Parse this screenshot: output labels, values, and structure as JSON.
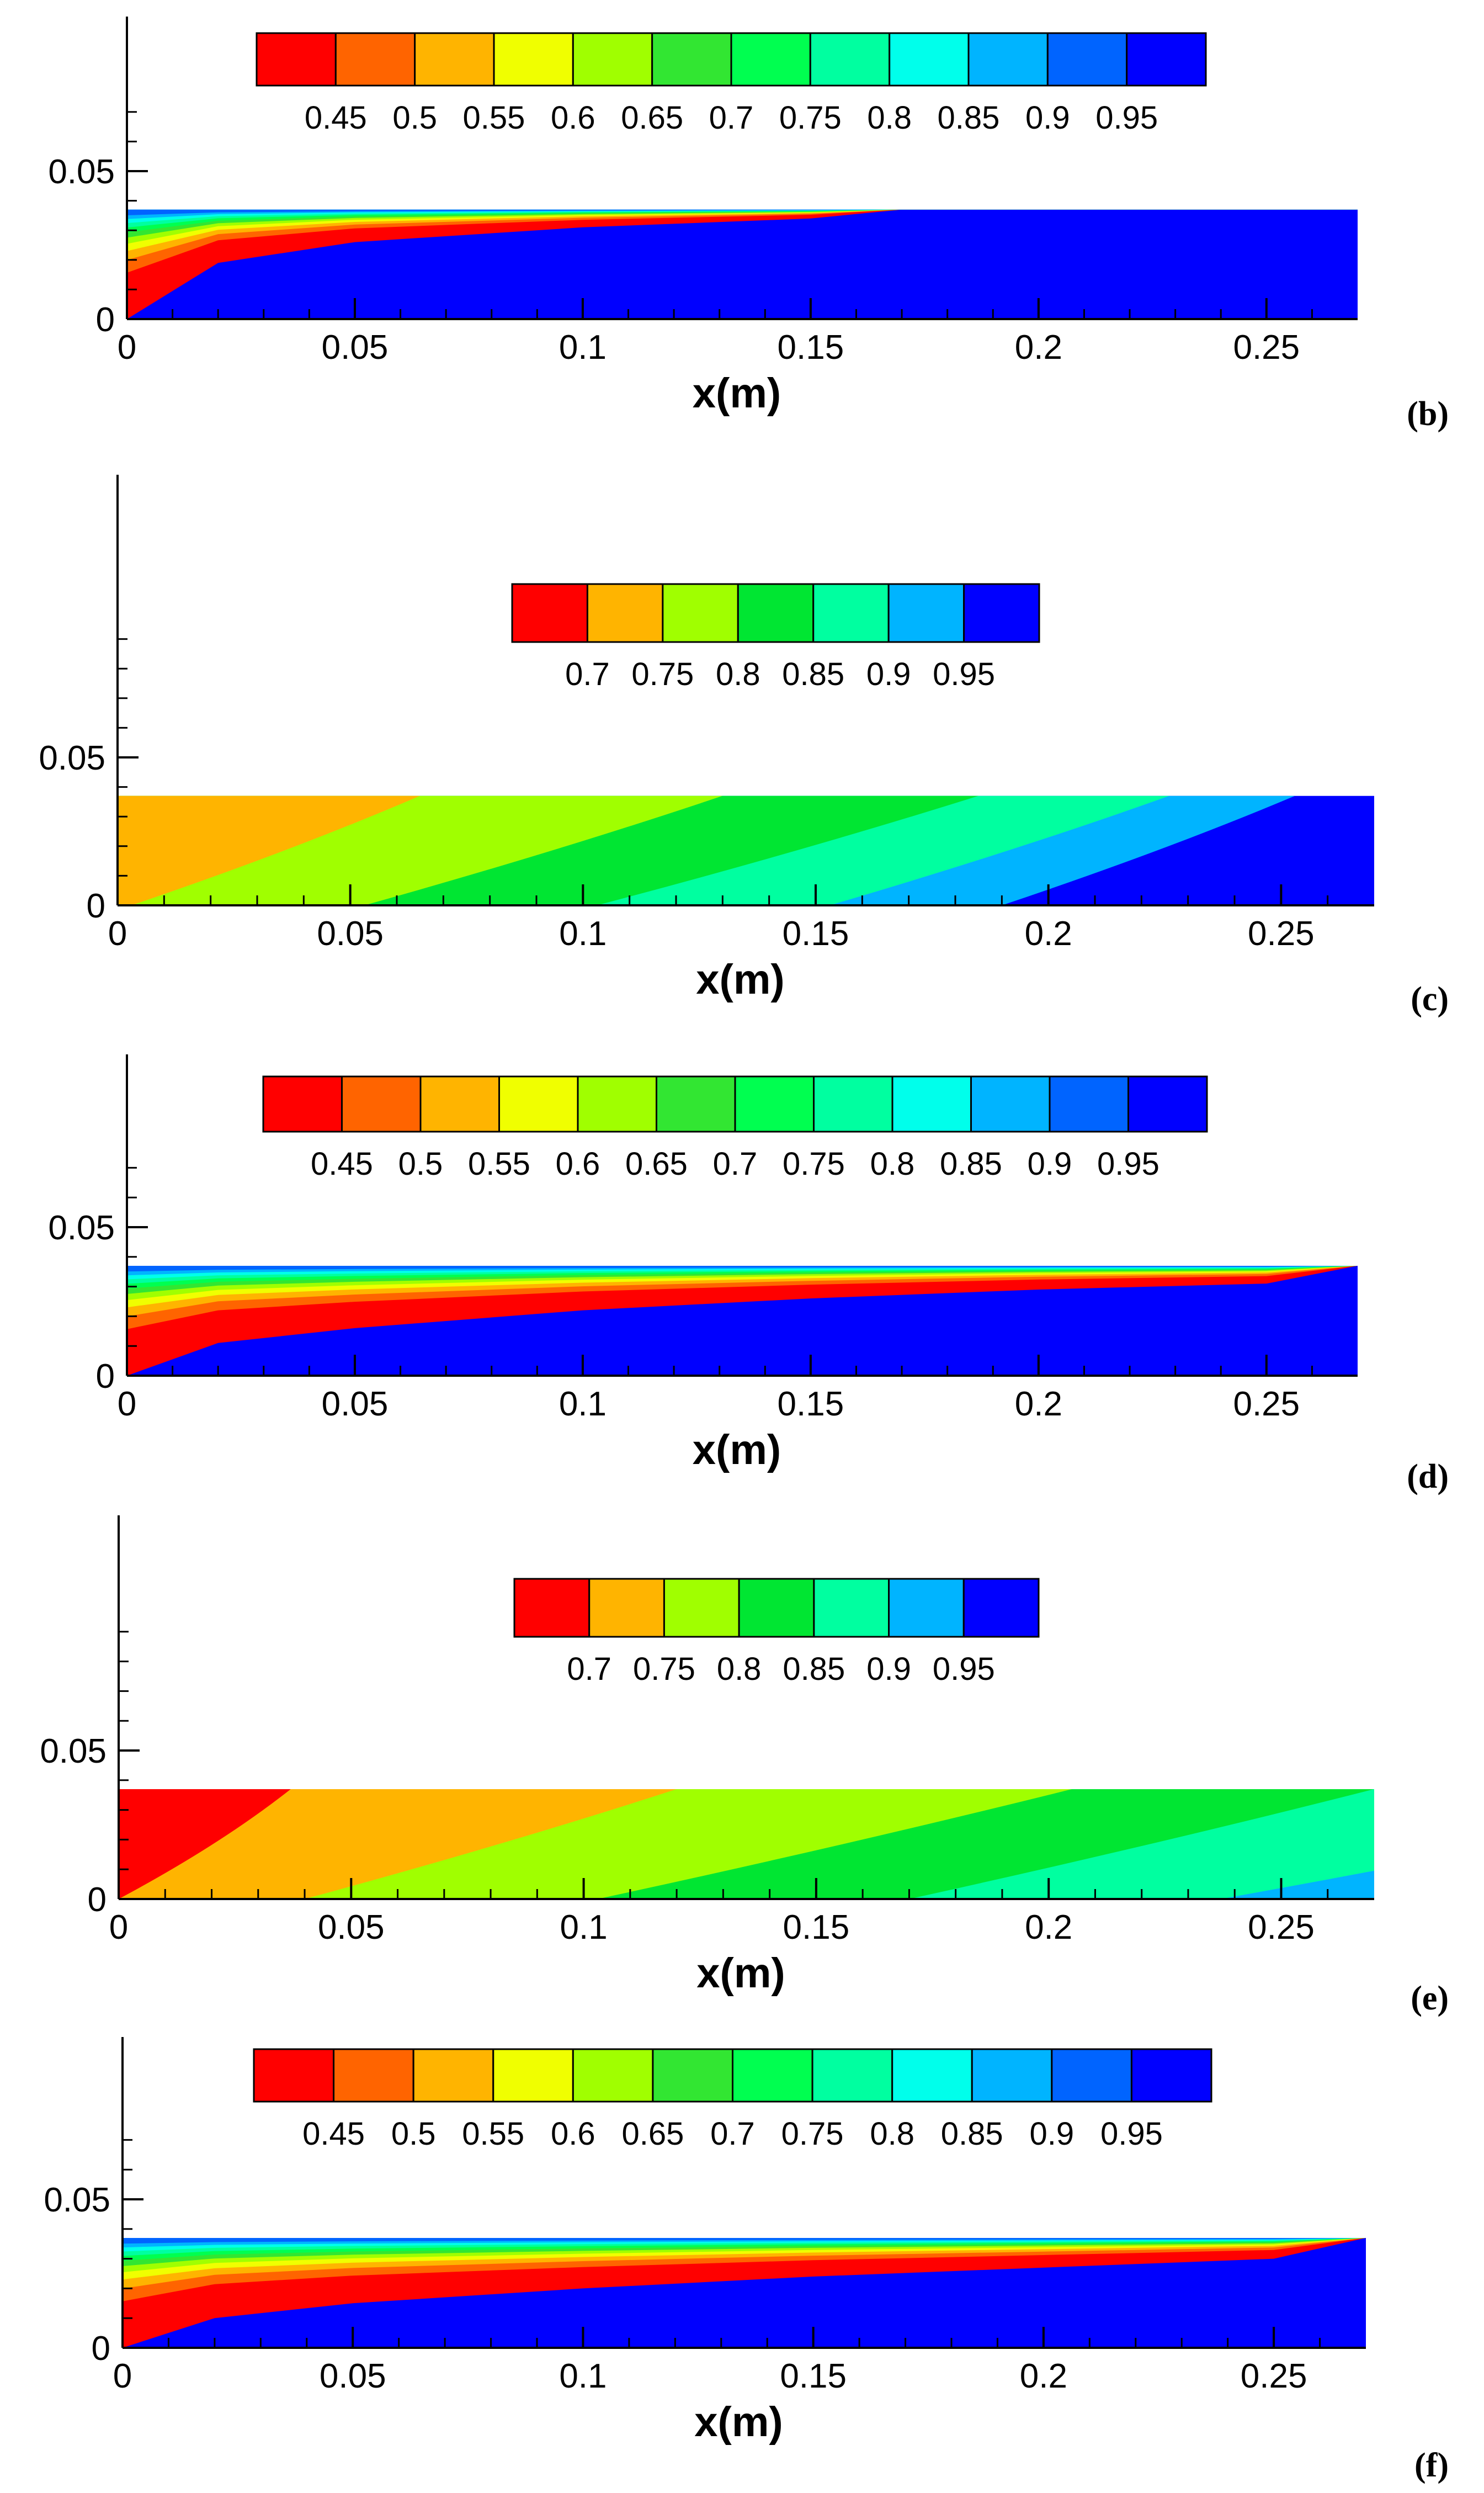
{
  "chart_data": [
    {
      "type": "heatmap",
      "panel": "(b)",
      "xlabel": "x(m)",
      "ylabel": "",
      "xlim": [
        0,
        0.27
      ],
      "ylim": [
        0,
        0.07
      ],
      "domain_height": 0.037,
      "xticks": [
        0,
        0.05,
        0.1,
        0.15,
        0.2,
        0.25
      ],
      "xtick_labels": [
        "0",
        "0.05",
        "0.1",
        "0.15",
        "0.2",
        "0.25"
      ],
      "yticks": [
        0,
        0.05
      ],
      "ytick_labels": [
        "0",
        "0.05"
      ],
      "legend": {
        "placement": "top",
        "levels": [
          "0.45",
          "0.5",
          "0.55",
          "0.6",
          "0.65",
          "0.7",
          "0.75",
          "0.8",
          "0.85",
          "0.9",
          "0.95"
        ],
        "colors": [
          "#ff0000",
          "#ff6400",
          "#ffb400",
          "#f0ff00",
          "#a0ff00",
          "#32e632",
          "#00ff50",
          "#00ffa0",
          "#00ffeb",
          "#00b4ff",
          "#0064ff",
          "#0000ff"
        ]
      },
      "interface": {
        "x": [
          0,
          0.02,
          0.05,
          0.1,
          0.15,
          0.17
        ],
        "y": [
          0.0,
          0.019,
          0.026,
          0.031,
          0.034,
          0.037
        ]
      },
      "field_description_color_background": "#0000ff"
    },
    {
      "type": "heatmap",
      "panel": "(c)",
      "xlabel": "x(m)",
      "ylabel": "",
      "xlim": [
        0,
        0.27
      ],
      "ylim": [
        0,
        0.09
      ],
      "domain_height": 0.037,
      "xticks": [
        0,
        0.05,
        0.1,
        0.15,
        0.2,
        0.25
      ],
      "xtick_labels": [
        "0",
        "0.05",
        "0.1",
        "0.15",
        "0.2",
        "0.25"
      ],
      "yticks": [
        0,
        0.05
      ],
      "ytick_labels": [
        "0",
        "0.05"
      ],
      "legend": {
        "placement": "top",
        "levels": [
          "0.7",
          "0.75",
          "0.8",
          "0.85",
          "0.9",
          "0.95"
        ],
        "colors": [
          "#ff0000",
          "#ffb400",
          "#a0ff00",
          "#00e632",
          "#00ffa0",
          "#00b4ff",
          "#0000ff"
        ]
      },
      "bands": [
        {
          "color": "#ffb400",
          "x_bottom": 0.003,
          "x_top": 0.065
        },
        {
          "color": "#a0ff00",
          "x_bottom": 0.053,
          "x_top": 0.13
        },
        {
          "color": "#00e632",
          "x_bottom": 0.103,
          "x_top": 0.185
        },
        {
          "color": "#00ffa0",
          "x_bottom": 0.153,
          "x_top": 0.226
        },
        {
          "color": "#00b4ff",
          "x_bottom": 0.19,
          "x_top": 0.253
        }
      ],
      "last_color": "#0000ff"
    },
    {
      "type": "heatmap",
      "panel": "(d)",
      "xlabel": "x(m)",
      "ylabel": "",
      "xlim": [
        0,
        0.27
      ],
      "ylim": [
        0,
        0.07
      ],
      "domain_height": 0.037,
      "xticks": [
        0,
        0.05,
        0.1,
        0.15,
        0.2,
        0.25
      ],
      "xtick_labels": [
        "0",
        "0.05",
        "0.1",
        "0.15",
        "0.2",
        "0.25"
      ],
      "yticks": [
        0,
        0.05
      ],
      "ytick_labels": [
        "0",
        "0.05"
      ],
      "legend": {
        "placement": "top",
        "levels": [
          "0.45",
          "0.5",
          "0.55",
          "0.6",
          "0.65",
          "0.7",
          "0.75",
          "0.8",
          "0.85",
          "0.9",
          "0.95"
        ],
        "colors": [
          "#ff0000",
          "#ff6400",
          "#ffb400",
          "#f0ff00",
          "#a0ff00",
          "#32e632",
          "#00ff50",
          "#00ffa0",
          "#00ffeb",
          "#00b4ff",
          "#0064ff",
          "#0000ff"
        ]
      },
      "interface": {
        "x": [
          0,
          0.02,
          0.05,
          0.1,
          0.15,
          0.2,
          0.25,
          0.27
        ],
        "y": [
          0.0,
          0.011,
          0.016,
          0.022,
          0.026,
          0.029,
          0.031,
          0.037
        ]
      }
    },
    {
      "type": "heatmap",
      "panel": "(e)",
      "xlabel": "x(m)",
      "ylabel": "",
      "xlim": [
        0,
        0.27
      ],
      "ylim": [
        0,
        0.09
      ],
      "domain_height": 0.037,
      "xticks": [
        0,
        0.05,
        0.1,
        0.15,
        0.2,
        0.25
      ],
      "xtick_labels": [
        "0",
        "0.05",
        "0.1",
        "0.15",
        "0.2",
        "0.25"
      ],
      "yticks": [
        0,
        0.05
      ],
      "ytick_labels": [
        "0",
        "0.05"
      ],
      "legend": {
        "placement": "top",
        "levels": [
          "0.7",
          "0.75",
          "0.8",
          "0.85",
          "0.9",
          "0.95"
        ],
        "colors": [
          "#ff0000",
          "#ffb400",
          "#a0ff00",
          "#00e632",
          "#00ffa0",
          "#00b4ff",
          "#0000ff"
        ]
      },
      "bands": [
        {
          "color": "#ff0000",
          "x_bottom": 0.0,
          "x_top": 0.037
        },
        {
          "color": "#ffb400",
          "x_bottom": 0.04,
          "x_top": 0.12
        },
        {
          "color": "#a0ff00",
          "x_bottom": 0.103,
          "x_top": 0.205
        },
        {
          "color": "#00e632",
          "x_bottom": 0.17,
          "x_top": 0.27
        },
        {
          "color": "#00ffa0",
          "x_bottom": 0.237,
          "x_top": 0.36
        }
      ],
      "last_color": "#00b4ff"
    },
    {
      "type": "heatmap",
      "panel": "(f)",
      "xlabel": "x(m)",
      "ylabel": "",
      "xlim": [
        0,
        0.27
      ],
      "ylim": [
        0,
        0.07
      ],
      "domain_height": 0.037,
      "xticks": [
        0,
        0.05,
        0.1,
        0.15,
        0.2,
        0.25
      ],
      "xtick_labels": [
        "0",
        "0.05",
        "0.1",
        "0.15",
        "0.2",
        "0.25"
      ],
      "yticks": [
        0,
        0.05
      ],
      "ytick_labels": [
        "0",
        "0.05"
      ],
      "legend": {
        "placement": "top",
        "levels": [
          "0.45",
          "0.5",
          "0.55",
          "0.6",
          "0.65",
          "0.7",
          "0.75",
          "0.8",
          "0.85",
          "0.9",
          "0.95"
        ],
        "colors": [
          "#ff0000",
          "#ff6400",
          "#ffb400",
          "#f0ff00",
          "#a0ff00",
          "#32e632",
          "#00ff50",
          "#00ffa0",
          "#00ffeb",
          "#00b4ff",
          "#0064ff",
          "#0000ff"
        ]
      },
      "interface": {
        "x": [
          0,
          0.02,
          0.05,
          0.1,
          0.15,
          0.2,
          0.25,
          0.27
        ],
        "y": [
          0.0,
          0.01,
          0.015,
          0.02,
          0.024,
          0.027,
          0.03,
          0.037
        ]
      }
    }
  ]
}
